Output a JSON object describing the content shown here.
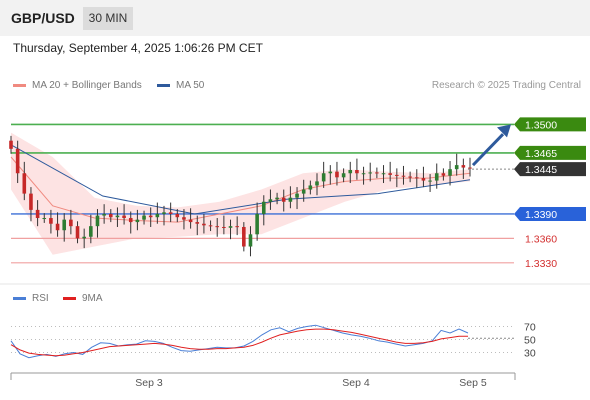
{
  "header": {
    "symbol": "GBP/USD",
    "timeframe": "30 MIN"
  },
  "datetime": "Thursday, September 4, 2025 1:06:26 PM CET",
  "legend": {
    "items": [
      {
        "label": "MA 20 + Bollinger Bands",
        "color": "#f08a80"
      },
      {
        "label": "MA 50",
        "color": "#2e5a9c"
      }
    ],
    "credit": "Research © 2025 Trading Central"
  },
  "rsi_legend": {
    "items": [
      {
        "label": "RSI",
        "color": "#4a7fd6"
      },
      {
        "label": "9MA",
        "color": "#e02020"
      }
    ]
  },
  "colors": {
    "up_candle": "#2e7d32",
    "down_candle": "#c62828",
    "resistance_line": "#4caf50",
    "resistance_label": "#3a8a10",
    "pivot_line": "#3b6fd6",
    "pivot_label": "#2962d9",
    "support_line": "#f0a0a0",
    "support_text": "#d32f2f",
    "last_price_bg": "#333333",
    "arrow": "#2e5a9c",
    "bollinger_fill": "#fde3e3"
  },
  "chart_data": [
    {
      "type": "candlestick",
      "title": "GBP/USD 30 MIN",
      "x_ticks": [
        "Sep 3",
        "Sep 4",
        "Sep 5"
      ],
      "y_range": [
        1.3315,
        1.353
      ],
      "last_price": 1.3445,
      "levels": [
        {
          "price": 1.35,
          "label": "1.3500",
          "kind": "resistance"
        },
        {
          "price": 1.3465,
          "label": "1.3465",
          "kind": "resistance"
        },
        {
          "price": 1.339,
          "label": "1.3390",
          "kind": "pivot"
        },
        {
          "price": 1.336,
          "label": "1.3360",
          "kind": "support"
        },
        {
          "price": 1.333,
          "label": "1.3330",
          "kind": "support"
        }
      ],
      "close_series": [
        1.347,
        1.344,
        1.3415,
        1.3395,
        1.3385,
        1.3385,
        1.3378,
        1.337,
        1.3383,
        1.3375,
        1.336,
        1.3362,
        1.3375,
        1.3388,
        1.339,
        1.3386,
        1.3388,
        1.3385,
        1.338,
        1.3383,
        1.3388,
        1.3386,
        1.339,
        1.3392,
        1.339,
        1.3386,
        1.3383,
        1.338,
        1.3378,
        1.3376,
        1.3375,
        1.3374,
        1.3373,
        1.3375,
        1.3374,
        1.335,
        1.3365,
        1.339,
        1.3405,
        1.3408,
        1.341,
        1.3405,
        1.341,
        1.3415,
        1.342,
        1.3425,
        1.343,
        1.344,
        1.3442,
        1.3435,
        1.344,
        1.3444,
        1.344,
        1.344,
        1.3441,
        1.344,
        1.344,
        1.3438,
        1.3437,
        1.3436,
        1.3435,
        1.3434,
        1.3431,
        1.3431,
        1.344,
        1.3437,
        1.3445,
        1.345,
        1.3447,
        1.3446
      ],
      "ma50_series": [
        1.3475,
        1.3412,
        1.339,
        1.3408,
        1.3415,
        1.3432
      ],
      "ma20_series": [
        1.346,
        1.34,
        1.3385,
        1.3382,
        1.338,
        1.339,
        1.34,
        1.342,
        1.343,
        1.3434,
        1.3434,
        1.344
      ],
      "bollinger_upper": [
        1.349,
        1.346,
        1.341,
        1.34,
        1.3398,
        1.3405,
        1.342,
        1.344,
        1.3445,
        1.3442,
        1.344,
        1.3445
      ],
      "bollinger_lower": [
        1.342,
        1.334,
        1.335,
        1.336,
        1.3362,
        1.3365,
        1.3365,
        1.3385,
        1.3405,
        1.342,
        1.3425,
        1.343
      ]
    },
    {
      "type": "line",
      "title": "RSI",
      "y_ticks": [
        70,
        50,
        30
      ],
      "y_range": [
        0,
        100
      ],
      "series": [
        {
          "name": "RSI",
          "values": [
            48,
            28,
            22,
            25,
            27,
            24,
            28,
            30,
            27,
            38,
            45,
            44,
            40,
            42,
            43,
            48,
            47,
            44,
            38,
            33,
            32,
            34,
            36,
            38,
            37,
            37,
            40,
            47,
            57,
            65,
            68,
            62,
            67,
            70,
            72,
            68,
            64,
            60,
            57,
            55,
            52,
            48,
            46,
            43,
            40,
            42,
            44,
            48,
            64,
            60,
            66,
            60
          ]
        },
        {
          "name": "9MA",
          "values": [
            42,
            34,
            29,
            27,
            26,
            25,
            26,
            28,
            30,
            33,
            36,
            39,
            40,
            41,
            42,
            43,
            44,
            43,
            41,
            38,
            36,
            35,
            35,
            36,
            36,
            37,
            38,
            41,
            46,
            52,
            57,
            60,
            63,
            65,
            66,
            66,
            65,
            63,
            61,
            58,
            55,
            52,
            49,
            46,
            44,
            44,
            45,
            47,
            51,
            53,
            55,
            55
          ]
        }
      ]
    }
  ]
}
